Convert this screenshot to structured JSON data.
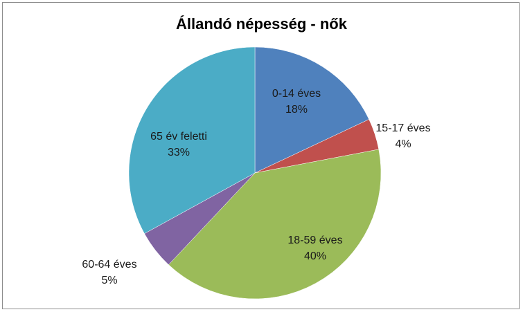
{
  "chart_data": {
    "type": "pie",
    "title": "Állandó népesség - nők",
    "slices": [
      {
        "label": "0-14 éves",
        "value": 18,
        "value_label": "18%",
        "color": "#4f81bd"
      },
      {
        "label": "15-17 éves",
        "value": 4,
        "value_label": "4%",
        "color": "#c0504d"
      },
      {
        "label": "18-59 éves",
        "value": 40,
        "value_label": "40%",
        "color": "#9bbb59"
      },
      {
        "label": "60-64 éves",
        "value": 5,
        "value_label": "5%",
        "color": "#8064a2"
      },
      {
        "label": "65 év feletti",
        "value": 33,
        "value_label": "33%",
        "color": "#4bacc6"
      }
    ],
    "start_angle": "12 o'clock",
    "direction": "clockwise",
    "legend": "none"
  }
}
